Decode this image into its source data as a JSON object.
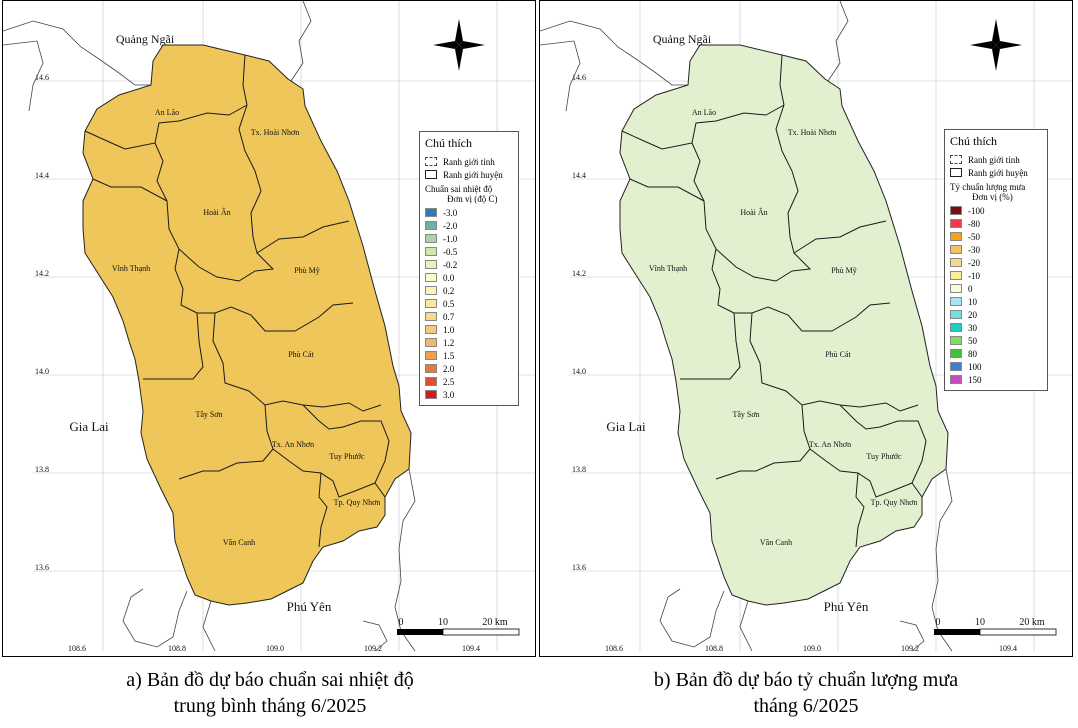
{
  "panel_a": {
    "places": {
      "quang_ngai": "Quảng Ngãi",
      "gia_lai": "Gia Lai",
      "phu_yen": "Phú Yên",
      "an_lao": "An Lão",
      "hoai_nhon": "Tx. Hoài Nhơn",
      "hoai_an": "Hoài Ân",
      "vinh_thanh": "Vĩnh Thạnh",
      "phu_my": "Phù Mỹ",
      "phu_cat": "Phù Cát",
      "tay_son": "Tây Sơn",
      "an_nhon": "Tx. An Nhơn",
      "tuy_phuoc": "Tuy Phước",
      "quy_nhon": "Tp. Quy Nhơn",
      "van_canh": "Vân Canh"
    },
    "lat_ticks": [
      "14.6",
      "14.4",
      "14.2",
      "14.0",
      "13.8",
      "13.6"
    ],
    "lon_ticks": [
      "108.6",
      "108.8",
      "109.0",
      "109.2",
      "109.4"
    ],
    "scale": {
      "zero": "0",
      "mid": "10",
      "end": "20 km"
    },
    "fill_color": "#efc65a",
    "legend": {
      "title": "Chú thích",
      "province_boundary": "Ranh giới tỉnh",
      "district_boundary": "Ranh giới huyện",
      "subtitle": "Chuẩn sai nhiệt độ",
      "unit": "Đơn vị (độ C)",
      "items": [
        {
          "label": "-3.0",
          "color": "#2b7bba"
        },
        {
          "label": "-2.0",
          "color": "#6fb0a4"
        },
        {
          "label": "-1.0",
          "color": "#a9d6a0"
        },
        {
          "label": "-0.5",
          "color": "#cfe8a8"
        },
        {
          "label": "-0.2",
          "color": "#eaf3b4"
        },
        {
          "label": "0.0",
          "color": "#fdfcc8"
        },
        {
          "label": "0.2",
          "color": "#fbf3b0"
        },
        {
          "label": "0.5",
          "color": "#f9e79c"
        },
        {
          "label": "0.7",
          "color": "#f6da8c"
        },
        {
          "label": "1.0",
          "color": "#f3ca7c"
        },
        {
          "label": "1.2",
          "color": "#f0b868"
        },
        {
          "label": "1.5",
          "color": "#eda052"
        },
        {
          "label": "2.0",
          "color": "#e57a40"
        },
        {
          "label": "2.5",
          "color": "#dd5034"
        },
        {
          "label": "3.0",
          "color": "#d7191c"
        }
      ]
    },
    "caption_line1": "a) Bản đồ dự báo chuẩn sai nhiệt độ",
    "caption_line2": "trung bình tháng 6/2025"
  },
  "panel_b": {
    "places": {
      "quang_ngai": "Quảng Ngãi",
      "gia_lai": "Gia Lai",
      "phu_yen": "Phú Yên",
      "an_lao": "An Lão",
      "hoai_nhon": "Tx. Hoài Nhơn",
      "hoai_an": "Hoài Ân",
      "vinh_thanh": "Vĩnh Thạnh",
      "phu_my": "Phù Mỹ",
      "phu_cat": "Phù Cát",
      "tay_son": "Tây Sơn",
      "an_nhon": "Tx. An Nhơn",
      "tuy_phuoc": "Tuy Phước",
      "quy_nhon": "Tp. Quy Nhơn",
      "van_canh": "Vân Canh"
    },
    "lat_ticks": [
      "14.6",
      "14.4",
      "14.2",
      "14.0",
      "13.8",
      "13.6"
    ],
    "lon_ticks": [
      "108.6",
      "108.8",
      "109.0",
      "109.2",
      "109.4"
    ],
    "scale": {
      "zero": "0",
      "mid": "10",
      "end": "20 km"
    },
    "fill_color": "#e3f0cf",
    "legend": {
      "title": "Chú thích",
      "province_boundary": "Ranh giới tỉnh",
      "district_boundary": "Ranh giới huyện",
      "subtitle": "Tỷ chuẩn lượng mưa",
      "unit": "Đơn vị (%)",
      "items": [
        {
          "label": "-100",
          "color": "#7a0f14"
        },
        {
          "label": "-80",
          "color": "#f23a4a"
        },
        {
          "label": "-50",
          "color": "#f5a41c"
        },
        {
          "label": "-30",
          "color": "#f5c064"
        },
        {
          "label": "-20",
          "color": "#f8d88a"
        },
        {
          "label": "-10",
          "color": "#fbef96"
        },
        {
          "label": "0",
          "color": "#fcf8dc"
        },
        {
          "label": "10",
          "color": "#a8e4f0"
        },
        {
          "label": "20",
          "color": "#6ee0e0"
        },
        {
          "label": "30",
          "color": "#1dcfc3"
        },
        {
          "label": "50",
          "color": "#7fe05a"
        },
        {
          "label": "80",
          "color": "#3ec43c"
        },
        {
          "label": "100",
          "color": "#3a7fd9"
        },
        {
          "label": "150",
          "color": "#c848c0"
        }
      ]
    },
    "caption_line1": "b) Bản đồ dự báo tỷ chuẩn lượng mưa",
    "caption_line2": "tháng 6/2025"
  }
}
